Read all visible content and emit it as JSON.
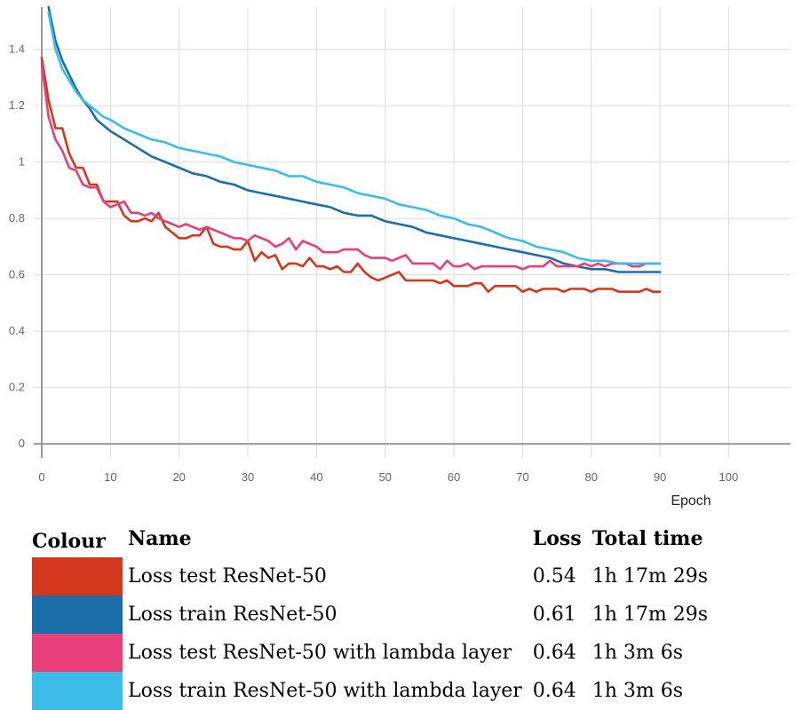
{
  "chart_data": {
    "type": "line",
    "xlabel": "Epoch",
    "ylabel": "",
    "xlim": [
      0,
      109
    ],
    "ylim": [
      -0.05,
      1.55
    ],
    "x_ticks": [
      0,
      10,
      20,
      30,
      40,
      50,
      60,
      70,
      80,
      90,
      100
    ],
    "y_ticks": [
      0,
      0.2,
      0.4,
      0.6,
      0.8,
      1,
      1.2,
      1.4
    ],
    "x_tick_labels": [
      "0",
      "10",
      "20",
      "30",
      "40",
      "50",
      "60",
      "70",
      "80",
      "90",
      "100"
    ],
    "y_tick_labels": [
      "0",
      "0.2",
      "0.4",
      "0.6",
      "0.8",
      "1",
      "1.2",
      "1.4"
    ],
    "grid": true,
    "series": [
      {
        "name": "Loss test ResNet-50",
        "color": "#d2381c",
        "points": [
          [
            0,
            1.37
          ],
          [
            1,
            1.22
          ],
          [
            2,
            1.12
          ],
          [
            3,
            1.12
          ],
          [
            4,
            1.03
          ],
          [
            5,
            0.98
          ],
          [
            6,
            0.98
          ],
          [
            7,
            0.92
          ],
          [
            8,
            0.92
          ],
          [
            9,
            0.86
          ],
          [
            10,
            0.86
          ],
          [
            11,
            0.86
          ],
          [
            12,
            0.81
          ],
          [
            13,
            0.79
          ],
          [
            14,
            0.79
          ],
          [
            15,
            0.8
          ],
          [
            16,
            0.79
          ],
          [
            17,
            0.82
          ],
          [
            18,
            0.77
          ],
          [
            19,
            0.75
          ],
          [
            20,
            0.73
          ],
          [
            21,
            0.73
          ],
          [
            22,
            0.74
          ],
          [
            23,
            0.74
          ],
          [
            24,
            0.77
          ],
          [
            25,
            0.71
          ],
          [
            26,
            0.7
          ],
          [
            27,
            0.7
          ],
          [
            28,
            0.69
          ],
          [
            29,
            0.69
          ],
          [
            30,
            0.72
          ],
          [
            31,
            0.65
          ],
          [
            32,
            0.68
          ],
          [
            33,
            0.66
          ],
          [
            34,
            0.67
          ],
          [
            35,
            0.62
          ],
          [
            36,
            0.64
          ],
          [
            37,
            0.64
          ],
          [
            38,
            0.63
          ],
          [
            39,
            0.66
          ],
          [
            40,
            0.63
          ],
          [
            41,
            0.63
          ],
          [
            42,
            0.62
          ],
          [
            43,
            0.63
          ],
          [
            44,
            0.61
          ],
          [
            45,
            0.61
          ],
          [
            46,
            0.64
          ],
          [
            47,
            0.61
          ],
          [
            48,
            0.59
          ],
          [
            49,
            0.58
          ],
          [
            50,
            0.59
          ],
          [
            51,
            0.6
          ],
          [
            52,
            0.61
          ],
          [
            53,
            0.58
          ],
          [
            54,
            0.58
          ],
          [
            55,
            0.58
          ],
          [
            56,
            0.58
          ],
          [
            57,
            0.58
          ],
          [
            58,
            0.57
          ],
          [
            59,
            0.58
          ],
          [
            60,
            0.56
          ],
          [
            61,
            0.56
          ],
          [
            62,
            0.56
          ],
          [
            63,
            0.57
          ],
          [
            64,
            0.57
          ],
          [
            65,
            0.54
          ],
          [
            66,
            0.56
          ],
          [
            67,
            0.56
          ],
          [
            68,
            0.56
          ],
          [
            69,
            0.56
          ],
          [
            70,
            0.54
          ],
          [
            71,
            0.55
          ],
          [
            72,
            0.54
          ],
          [
            73,
            0.55
          ],
          [
            74,
            0.55
          ],
          [
            75,
            0.55
          ],
          [
            76,
            0.54
          ],
          [
            77,
            0.55
          ],
          [
            78,
            0.55
          ],
          [
            79,
            0.55
          ],
          [
            80,
            0.54
          ],
          [
            81,
            0.55
          ],
          [
            82,
            0.55
          ],
          [
            83,
            0.55
          ],
          [
            84,
            0.54
          ],
          [
            85,
            0.54
          ],
          [
            86,
            0.54
          ],
          [
            87,
            0.54
          ],
          [
            88,
            0.55
          ],
          [
            89,
            0.54
          ],
          [
            90,
            0.54
          ]
        ]
      },
      {
        "name": "Loss train ResNet-50",
        "color": "#1a6faa",
        "points": [
          [
            1,
            1.55
          ],
          [
            2,
            1.43
          ],
          [
            3,
            1.36
          ],
          [
            4,
            1.31
          ],
          [
            5,
            1.26
          ],
          [
            6,
            1.22
          ],
          [
            7,
            1.19
          ],
          [
            8,
            1.15
          ],
          [
            9,
            1.13
          ],
          [
            10,
            1.11
          ],
          [
            12,
            1.08
          ],
          [
            14,
            1.05
          ],
          [
            16,
            1.02
          ],
          [
            18,
            1.0
          ],
          [
            20,
            0.98
          ],
          [
            22,
            0.96
          ],
          [
            24,
            0.95
          ],
          [
            26,
            0.93
          ],
          [
            28,
            0.92
          ],
          [
            30,
            0.9
          ],
          [
            32,
            0.89
          ],
          [
            34,
            0.88
          ],
          [
            36,
            0.87
          ],
          [
            38,
            0.86
          ],
          [
            40,
            0.85
          ],
          [
            42,
            0.84
          ],
          [
            44,
            0.82
          ],
          [
            46,
            0.81
          ],
          [
            48,
            0.81
          ],
          [
            50,
            0.79
          ],
          [
            52,
            0.78
          ],
          [
            54,
            0.77
          ],
          [
            56,
            0.75
          ],
          [
            58,
            0.74
          ],
          [
            60,
            0.73
          ],
          [
            62,
            0.72
          ],
          [
            64,
            0.71
          ],
          [
            66,
            0.7
          ],
          [
            68,
            0.69
          ],
          [
            70,
            0.68
          ],
          [
            72,
            0.67
          ],
          [
            74,
            0.66
          ],
          [
            76,
            0.64
          ],
          [
            78,
            0.63
          ],
          [
            80,
            0.62
          ],
          [
            82,
            0.62
          ],
          [
            84,
            0.61
          ],
          [
            86,
            0.61
          ],
          [
            88,
            0.61
          ],
          [
            90,
            0.61
          ]
        ]
      },
      {
        "name": "Loss test ResNet-50 with lambda layer",
        "color": "#e83e7a",
        "points": [
          [
            0,
            1.35
          ],
          [
            1,
            1.16
          ],
          [
            2,
            1.08
          ],
          [
            3,
            1.04
          ],
          [
            4,
            0.98
          ],
          [
            5,
            0.97
          ],
          [
            6,
            0.92
          ],
          [
            7,
            0.91
          ],
          [
            8,
            0.91
          ],
          [
            9,
            0.86
          ],
          [
            10,
            0.84
          ],
          [
            11,
            0.85
          ],
          [
            12,
            0.86
          ],
          [
            13,
            0.82
          ],
          [
            14,
            0.82
          ],
          [
            15,
            0.81
          ],
          [
            16,
            0.82
          ],
          [
            17,
            0.8
          ],
          [
            18,
            0.79
          ],
          [
            19,
            0.78
          ],
          [
            20,
            0.77
          ],
          [
            21,
            0.78
          ],
          [
            22,
            0.77
          ],
          [
            23,
            0.76
          ],
          [
            24,
            0.77
          ],
          [
            25,
            0.76
          ],
          [
            26,
            0.75
          ],
          [
            27,
            0.74
          ],
          [
            28,
            0.73
          ],
          [
            29,
            0.73
          ],
          [
            30,
            0.72
          ],
          [
            31,
            0.74
          ],
          [
            32,
            0.73
          ],
          [
            33,
            0.72
          ],
          [
            34,
            0.7
          ],
          [
            35,
            0.71
          ],
          [
            36,
            0.73
          ],
          [
            37,
            0.69
          ],
          [
            38,
            0.72
          ],
          [
            39,
            0.71
          ],
          [
            40,
            0.7
          ],
          [
            41,
            0.68
          ],
          [
            42,
            0.68
          ],
          [
            43,
            0.68
          ],
          [
            44,
            0.69
          ],
          [
            45,
            0.69
          ],
          [
            46,
            0.69
          ],
          [
            47,
            0.67
          ],
          [
            48,
            0.66
          ],
          [
            49,
            0.66
          ],
          [
            50,
            0.66
          ],
          [
            51,
            0.65
          ],
          [
            52,
            0.66
          ],
          [
            53,
            0.67
          ],
          [
            54,
            0.64
          ],
          [
            55,
            0.64
          ],
          [
            56,
            0.64
          ],
          [
            57,
            0.64
          ],
          [
            58,
            0.62
          ],
          [
            59,
            0.65
          ],
          [
            60,
            0.63
          ],
          [
            61,
            0.63
          ],
          [
            62,
            0.64
          ],
          [
            63,
            0.62
          ],
          [
            64,
            0.63
          ],
          [
            65,
            0.63
          ],
          [
            66,
            0.63
          ],
          [
            67,
            0.63
          ],
          [
            68,
            0.63
          ],
          [
            69,
            0.63
          ],
          [
            70,
            0.62
          ],
          [
            71,
            0.63
          ],
          [
            72,
            0.63
          ],
          [
            73,
            0.63
          ],
          [
            74,
            0.65
          ],
          [
            75,
            0.63
          ],
          [
            76,
            0.63
          ],
          [
            77,
            0.63
          ],
          [
            78,
            0.63
          ],
          [
            79,
            0.64
          ],
          [
            80,
            0.63
          ],
          [
            81,
            0.64
          ],
          [
            82,
            0.63
          ],
          [
            83,
            0.64
          ],
          [
            84,
            0.64
          ],
          [
            85,
            0.64
          ],
          [
            86,
            0.63
          ],
          [
            87,
            0.63
          ],
          [
            88,
            0.64
          ],
          [
            89,
            0.64
          ],
          [
            90,
            0.64
          ]
        ]
      },
      {
        "name": "Loss train ResNet-50 with lambda layer",
        "color": "#3bbde8",
        "points": [
          [
            1,
            1.53
          ],
          [
            2,
            1.4
          ],
          [
            3,
            1.33
          ],
          [
            4,
            1.29
          ],
          [
            5,
            1.25
          ],
          [
            6,
            1.22
          ],
          [
            7,
            1.2
          ],
          [
            8,
            1.18
          ],
          [
            9,
            1.16
          ],
          [
            10,
            1.15
          ],
          [
            12,
            1.12
          ],
          [
            14,
            1.1
          ],
          [
            16,
            1.08
          ],
          [
            18,
            1.07
          ],
          [
            20,
            1.05
          ],
          [
            22,
            1.04
          ],
          [
            24,
            1.03
          ],
          [
            26,
            1.02
          ],
          [
            28,
            1.0
          ],
          [
            30,
            0.99
          ],
          [
            32,
            0.98
          ],
          [
            34,
            0.97
          ],
          [
            36,
            0.95
          ],
          [
            38,
            0.95
          ],
          [
            40,
            0.93
          ],
          [
            42,
            0.92
          ],
          [
            44,
            0.91
          ],
          [
            46,
            0.89
          ],
          [
            48,
            0.88
          ],
          [
            50,
            0.87
          ],
          [
            52,
            0.85
          ],
          [
            54,
            0.84
          ],
          [
            56,
            0.83
          ],
          [
            58,
            0.81
          ],
          [
            60,
            0.8
          ],
          [
            62,
            0.78
          ],
          [
            64,
            0.77
          ],
          [
            66,
            0.75
          ],
          [
            68,
            0.73
          ],
          [
            70,
            0.72
          ],
          [
            72,
            0.7
          ],
          [
            74,
            0.69
          ],
          [
            76,
            0.68
          ],
          [
            78,
            0.66
          ],
          [
            80,
            0.65
          ],
          [
            82,
            0.65
          ],
          [
            84,
            0.64
          ],
          [
            86,
            0.64
          ],
          [
            88,
            0.64
          ],
          [
            90,
            0.64
          ]
        ]
      }
    ]
  },
  "legend_table": {
    "headers": {
      "colour": "Colour",
      "name": "Name",
      "loss": "Loss",
      "total_time": "Total time"
    },
    "rows": [
      {
        "color": "#d2381c",
        "name": "Loss test ResNet-50",
        "loss": "0.54",
        "total_time": "1h 17m 29s"
      },
      {
        "color": "#1a6faa",
        "name": "Loss train ResNet-50",
        "loss": "0.61",
        "total_time": "1h 17m 29s"
      },
      {
        "color": "#e83e7a",
        "name": "Loss test ResNet-50 with lambda layer",
        "loss": "0.64",
        "total_time": "1h 3m 6s"
      },
      {
        "color": "#3bbde8",
        "name": "Loss train ResNet-50 with lambda layer",
        "loss": "0.64",
        "total_time": "1h 3m 6s"
      }
    ]
  }
}
